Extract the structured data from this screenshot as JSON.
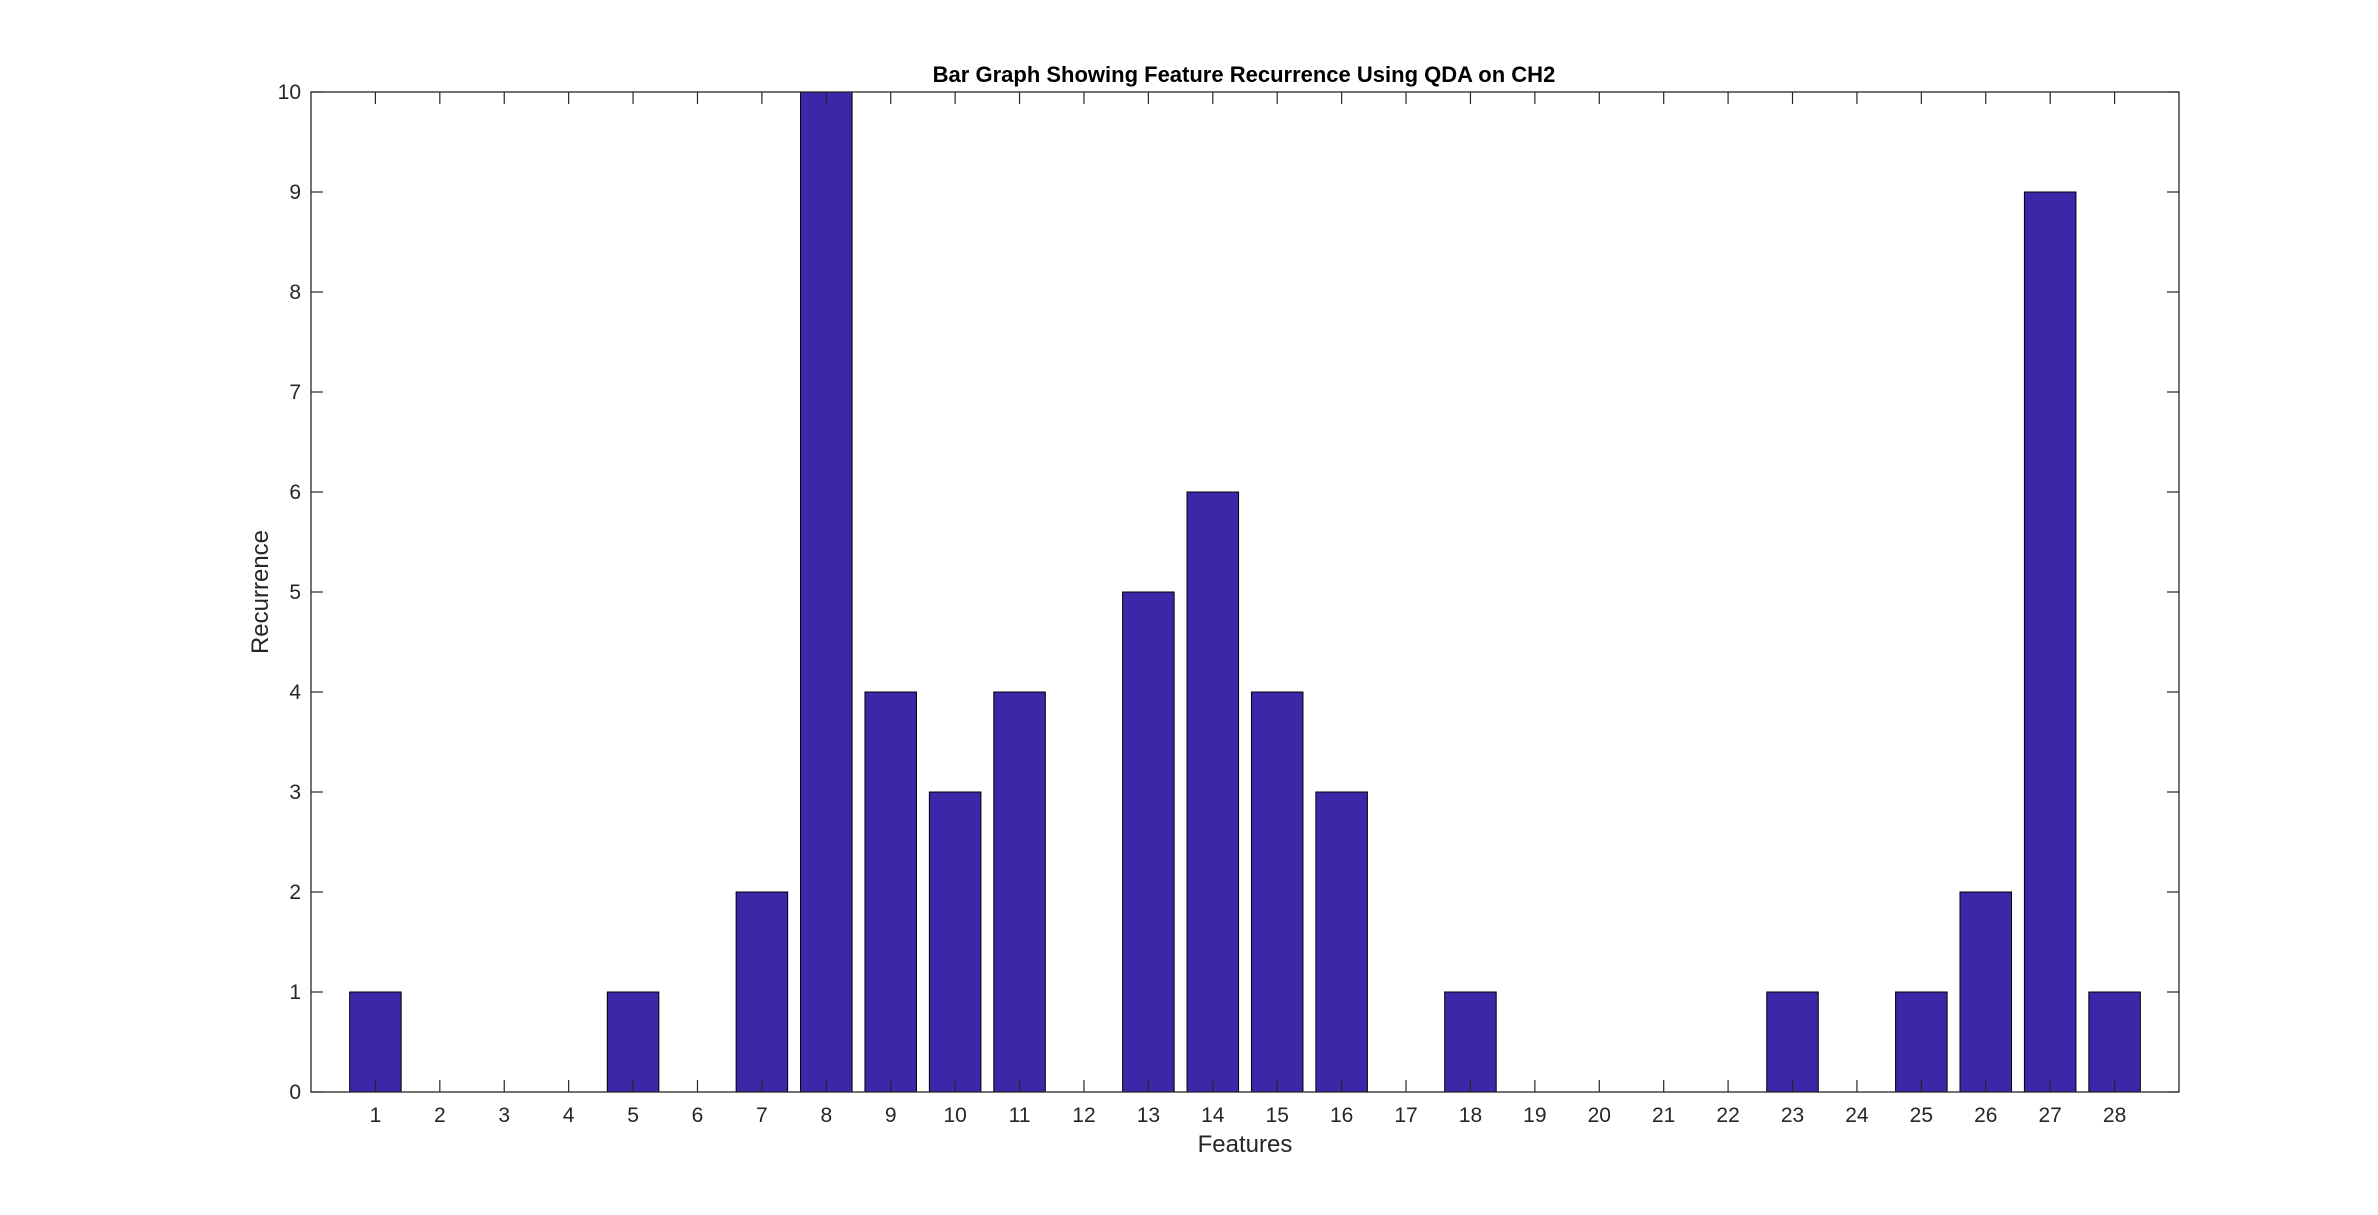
{
  "chart_data": {
    "type": "bar",
    "title": "Bar Graph Showing Feature Recurrence Using QDA on CH2",
    "xlabel": "Features",
    "ylabel": "Recurrence",
    "categories": [
      "1",
      "2",
      "3",
      "4",
      "5",
      "6",
      "7",
      "8",
      "9",
      "10",
      "11",
      "12",
      "13",
      "14",
      "15",
      "16",
      "17",
      "18",
      "19",
      "20",
      "21",
      "22",
      "23",
      "24",
      "25",
      "26",
      "27",
      "28"
    ],
    "values": [
      1,
      0,
      0,
      0,
      1,
      0,
      2,
      10,
      4,
      3,
      4,
      0,
      5,
      6,
      4,
      3,
      0,
      1,
      0,
      0,
      0,
      0,
      1,
      0,
      1,
      2,
      9,
      1
    ],
    "ylim": [
      0,
      10
    ],
    "yticks": [
      "0",
      "1",
      "2",
      "3",
      "4",
      "5",
      "6",
      "7",
      "8",
      "9",
      "10"
    ],
    "grid": false,
    "colors": {
      "bar_fill": "#3d27a8",
      "bar_edge": "#000000",
      "axis": "#262626"
    }
  }
}
